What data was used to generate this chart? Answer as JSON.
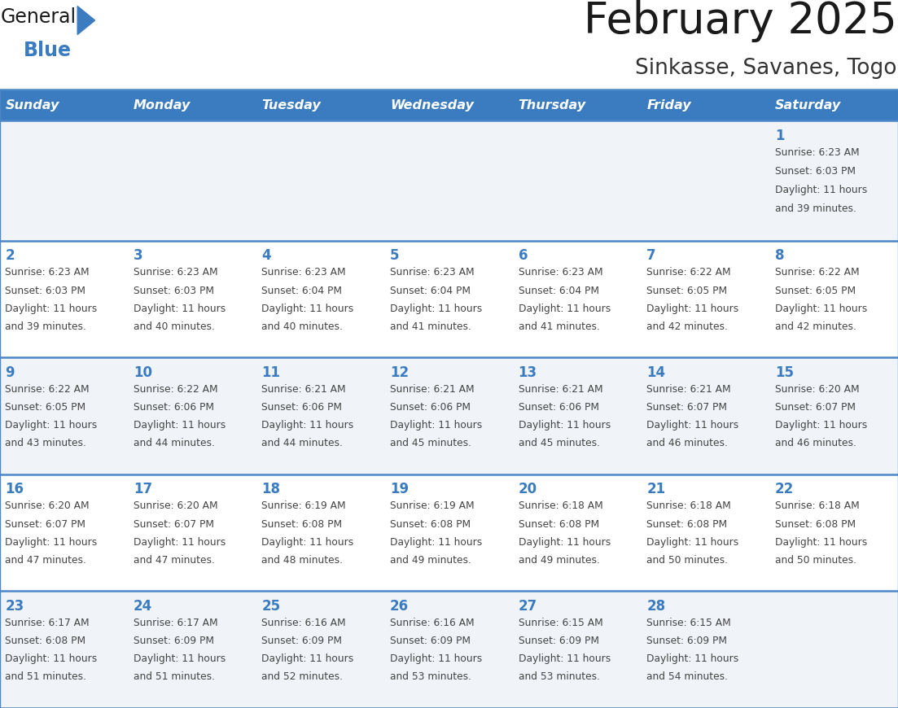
{
  "title": "February 2025",
  "subtitle": "Sinkasse, Savanes, Togo",
  "days_of_week": [
    "Sunday",
    "Monday",
    "Tuesday",
    "Wednesday",
    "Thursday",
    "Friday",
    "Saturday"
  ],
  "header_bg_color": "#3b7bbf",
  "header_text_color": "#ffffff",
  "row_bg_colors": [
    "#f0f4f8",
    "#ffffff",
    "#f0f4f8",
    "#ffffff",
    "#f0f4f8"
  ],
  "cell_border_color": "#4a86c8",
  "day_number_color": "#3b7bbf",
  "text_color": "#444444",
  "title_color": "#1a1a1a",
  "subtitle_color": "#333333",
  "logo_general_color": "#1a1a1a",
  "logo_blue_color": "#3b7bbf",
  "logo_triangle_color": "#3b7bbf",
  "calendar_data": [
    [
      null,
      null,
      null,
      null,
      null,
      null,
      {
        "day": 1,
        "sunrise": "6:23 AM",
        "sunset": "6:03 PM",
        "daylight": "11 hours and 39 minutes."
      }
    ],
    [
      {
        "day": 2,
        "sunrise": "6:23 AM",
        "sunset": "6:03 PM",
        "daylight": "11 hours and 39 minutes."
      },
      {
        "day": 3,
        "sunrise": "6:23 AM",
        "sunset": "6:03 PM",
        "daylight": "11 hours and 40 minutes."
      },
      {
        "day": 4,
        "sunrise": "6:23 AM",
        "sunset": "6:04 PM",
        "daylight": "11 hours and 40 minutes."
      },
      {
        "day": 5,
        "sunrise": "6:23 AM",
        "sunset": "6:04 PM",
        "daylight": "11 hours and 41 minutes."
      },
      {
        "day": 6,
        "sunrise": "6:23 AM",
        "sunset": "6:04 PM",
        "daylight": "11 hours and 41 minutes."
      },
      {
        "day": 7,
        "sunrise": "6:22 AM",
        "sunset": "6:05 PM",
        "daylight": "11 hours and 42 minutes."
      },
      {
        "day": 8,
        "sunrise": "6:22 AM",
        "sunset": "6:05 PM",
        "daylight": "11 hours and 42 minutes."
      }
    ],
    [
      {
        "day": 9,
        "sunrise": "6:22 AM",
        "sunset": "6:05 PM",
        "daylight": "11 hours and 43 minutes."
      },
      {
        "day": 10,
        "sunrise": "6:22 AM",
        "sunset": "6:06 PM",
        "daylight": "11 hours and 44 minutes."
      },
      {
        "day": 11,
        "sunrise": "6:21 AM",
        "sunset": "6:06 PM",
        "daylight": "11 hours and 44 minutes."
      },
      {
        "day": 12,
        "sunrise": "6:21 AM",
        "sunset": "6:06 PM",
        "daylight": "11 hours and 45 minutes."
      },
      {
        "day": 13,
        "sunrise": "6:21 AM",
        "sunset": "6:06 PM",
        "daylight": "11 hours and 45 minutes."
      },
      {
        "day": 14,
        "sunrise": "6:21 AM",
        "sunset": "6:07 PM",
        "daylight": "11 hours and 46 minutes."
      },
      {
        "day": 15,
        "sunrise": "6:20 AM",
        "sunset": "6:07 PM",
        "daylight": "11 hours and 46 minutes."
      }
    ],
    [
      {
        "day": 16,
        "sunrise": "6:20 AM",
        "sunset": "6:07 PM",
        "daylight": "11 hours and 47 minutes."
      },
      {
        "day": 17,
        "sunrise": "6:20 AM",
        "sunset": "6:07 PM",
        "daylight": "11 hours and 47 minutes."
      },
      {
        "day": 18,
        "sunrise": "6:19 AM",
        "sunset": "6:08 PM",
        "daylight": "11 hours and 48 minutes."
      },
      {
        "day": 19,
        "sunrise": "6:19 AM",
        "sunset": "6:08 PM",
        "daylight": "11 hours and 49 minutes."
      },
      {
        "day": 20,
        "sunrise": "6:18 AM",
        "sunset": "6:08 PM",
        "daylight": "11 hours and 49 minutes."
      },
      {
        "day": 21,
        "sunrise": "6:18 AM",
        "sunset": "6:08 PM",
        "daylight": "11 hours and 50 minutes."
      },
      {
        "day": 22,
        "sunrise": "6:18 AM",
        "sunset": "6:08 PM",
        "daylight": "11 hours and 50 minutes."
      }
    ],
    [
      {
        "day": 23,
        "sunrise": "6:17 AM",
        "sunset": "6:08 PM",
        "daylight": "11 hours and 51 minutes."
      },
      {
        "day": 24,
        "sunrise": "6:17 AM",
        "sunset": "6:09 PM",
        "daylight": "11 hours and 51 minutes."
      },
      {
        "day": 25,
        "sunrise": "6:16 AM",
        "sunset": "6:09 PM",
        "daylight": "11 hours and 52 minutes."
      },
      {
        "day": 26,
        "sunrise": "6:16 AM",
        "sunset": "6:09 PM",
        "daylight": "11 hours and 53 minutes."
      },
      {
        "day": 27,
        "sunrise": "6:15 AM",
        "sunset": "6:09 PM",
        "daylight": "11 hours and 53 minutes."
      },
      {
        "day": 28,
        "sunrise": "6:15 AM",
        "sunset": "6:09 PM",
        "daylight": "11 hours and 54 minutes."
      },
      null
    ]
  ]
}
